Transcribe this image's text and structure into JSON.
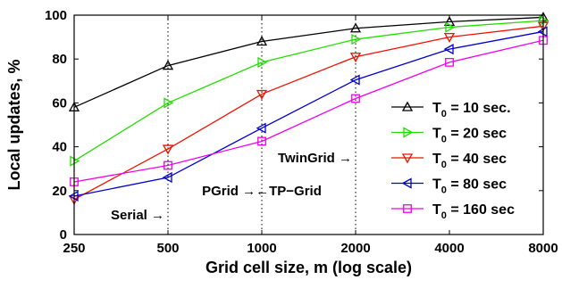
{
  "chart_data": {
    "type": "line",
    "xlabel": "Grid cell size, m (log scale)",
    "ylabel": "Local updates, %",
    "x_scale": "log",
    "categories": [
      "250",
      "500",
      "1000",
      "2000",
      "4000",
      "8000"
    ],
    "x": [
      250,
      500,
      1000,
      2000,
      4000,
      8000
    ],
    "y_ticks": [
      "0",
      "20",
      "40",
      "60",
      "80",
      "100"
    ],
    "ylim": [
      0,
      100
    ],
    "grid": false,
    "vertical_reference_lines_x": [
      500,
      1000,
      2000
    ],
    "legend_position": "lower-right",
    "series": [
      {
        "name_main": "T",
        "name_sub": "0",
        "name_rest": " = 10 sec.",
        "color": "#000000",
        "marker": "triangle-up",
        "values": [
          58,
          77,
          88,
          94,
          97,
          99
        ]
      },
      {
        "name_main": "T",
        "name_sub": "0",
        "name_rest": " = 20 sec",
        "color": "#22dd00",
        "marker": "triangle-right",
        "values": [
          33.5,
          60,
          78.5,
          89,
          94.5,
          97.5
        ]
      },
      {
        "name_main": "T",
        "name_sub": "0",
        "name_rest": " = 40 sec",
        "color": "#ee1100",
        "marker": "triangle-down",
        "values": [
          16,
          39,
          64,
          81,
          90,
          95
        ]
      },
      {
        "name_main": "T",
        "name_sub": "0",
        "name_rest": " = 80 sec",
        "color": "#0000cc",
        "marker": "triangle-left",
        "values": [
          17.5,
          26,
          48.5,
          70.5,
          84.5,
          92.5
        ]
      },
      {
        "name_main": "T",
        "name_sub": "0",
        "name_rest": " = 160 sec",
        "color": "#ee00ee",
        "marker": "square",
        "values": [
          24,
          31.5,
          42.5,
          62,
          78.5,
          88.5
        ]
      }
    ],
    "annotations": [
      {
        "text": "Serial →",
        "x": 500,
        "y": 9
      },
      {
        "text": "PGrid →←TP−Grid",
        "x": 1000,
        "y": 20
      },
      {
        "text": "TwinGrid →",
        "x": 2000,
        "y": 35
      }
    ]
  }
}
